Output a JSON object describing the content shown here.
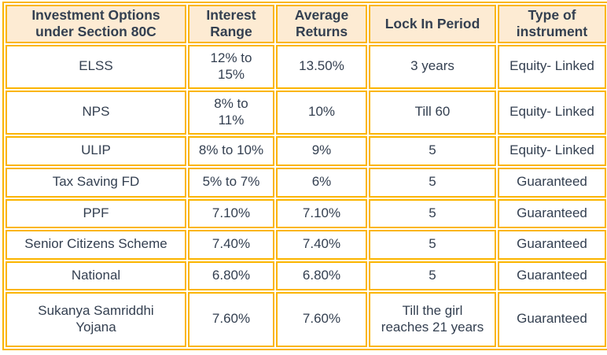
{
  "chart_data": {
    "type": "table",
    "title": "Investment Options under Section 80C",
    "columns": [
      "Investment Options under Section 80C",
      "Interest Range",
      "Average Returns",
      "Lock In Period",
      "Type of instrument"
    ],
    "rows": [
      [
        "ELSS",
        "12% to 15%",
        "13.50%",
        "3 years",
        "Equity- Linked"
      ],
      [
        "NPS",
        "8% to 11%",
        "10%",
        "Till 60",
        "Equity- Linked"
      ],
      [
        "ULIP",
        "8% to 10%",
        "9%",
        "5",
        "Equity- Linked"
      ],
      [
        "Tax Saving FD",
        "5% to 7%",
        "6%",
        "5",
        "Guaranteed"
      ],
      [
        "PPF",
        "7.10%",
        "7.10%",
        "5",
        "Guaranteed"
      ],
      [
        "Senior Citizens Scheme",
        "7.40%",
        "7.40%",
        "5",
        "Guaranteed"
      ],
      [
        "National",
        "6.80%",
        "6.80%",
        "5",
        "Guaranteed"
      ],
      [
        "Sukanya Samriddhi Yojana",
        "7.60%",
        "7.60%",
        "Till the girl reaches 21 years",
        "Guaranteed"
      ]
    ],
    "colors": {
      "border": "#FBB500",
      "header_background": "#FDEBD3",
      "text": "#333F50",
      "body_background": "#FFFFFF"
    }
  },
  "table": {
    "header": {
      "cells": [
        "Investment Options\nunder Section 80C",
        "Interest\nRange",
        "Average\nReturns",
        "Lock In Period",
        "Type of\ninstrument"
      ]
    },
    "rows": [
      {
        "cells": [
          "ELSS",
          "12% to\n15%",
          "13.50%",
          "3 years",
          "Equity- Linked"
        ]
      },
      {
        "cells": [
          "NPS",
          "8% to\n11%",
          "10%",
          "Till 60",
          "Equity- Linked"
        ]
      },
      {
        "cells": [
          "ULIP",
          "8% to 10%",
          "9%",
          "5",
          "Equity- Linked"
        ]
      },
      {
        "cells": [
          "Tax Saving FD",
          "5% to 7%",
          "6%",
          "5",
          "Guaranteed"
        ]
      },
      {
        "cells": [
          "PPF",
          "7.10%",
          "7.10%",
          "5",
          "Guaranteed"
        ]
      },
      {
        "cells": [
          "Senior Citizens Scheme",
          "7.40%",
          "7.40%",
          "5",
          "Guaranteed"
        ]
      },
      {
        "cells": [
          "National",
          "6.80%",
          "6.80%",
          "5",
          "Guaranteed"
        ]
      },
      {
        "cells": [
          "Sukanya Samriddhi\nYojana",
          "7.60%",
          "7.60%",
          "Till the girl\nreaches 21 years",
          "Guaranteed"
        ]
      }
    ]
  }
}
